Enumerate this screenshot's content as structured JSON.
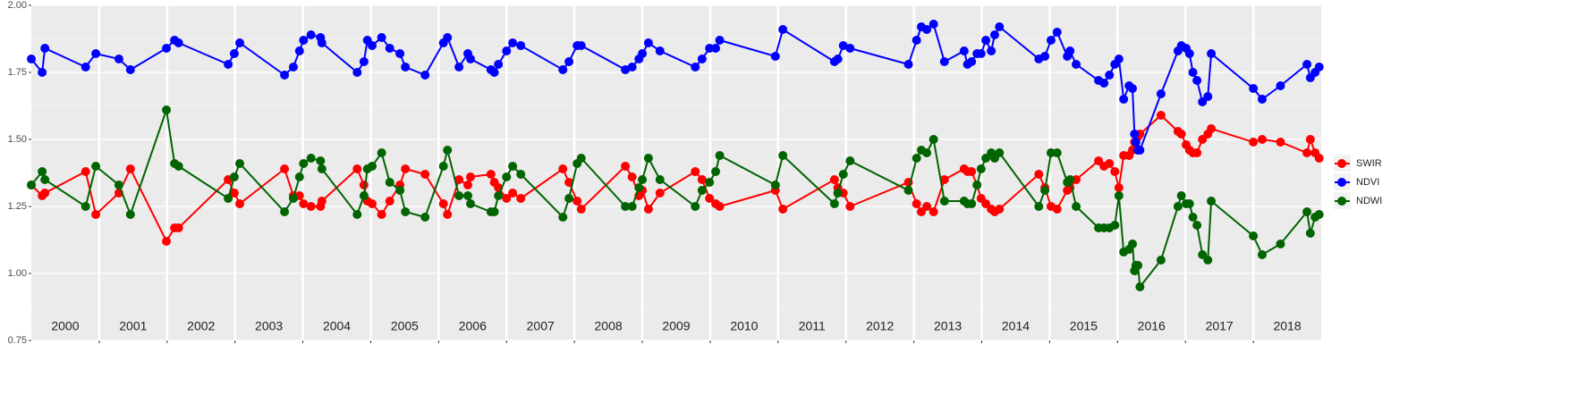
{
  "chart_data": {
    "type": "line",
    "x": [
      2000.0,
      2000.16,
      2000.2,
      2000.8,
      2000.95,
      2001.29,
      2001.46,
      2001.99,
      2002.11,
      2002.17,
      2002.9,
      2002.99,
      2003.07,
      2003.73,
      2003.86,
      2003.95,
      2004.01,
      2004.12,
      2004.26,
      2004.28,
      2004.8,
      2004.9,
      2004.95,
      2005.02,
      2005.16,
      2005.28,
      2005.43,
      2005.51,
      2005.8,
      2006.07,
      2006.13,
      2006.3,
      2006.43,
      2006.47,
      2006.77,
      2006.82,
      2006.88,
      2007.0,
      2007.09,
      2007.21,
      2007.83,
      2007.92,
      2008.04,
      2008.1,
      2008.75,
      2008.85,
      2008.95,
      2009.0,
      2009.09,
      2009.26,
      2009.78,
      2009.88,
      2009.99,
      2010.08,
      2010.14,
      2010.96,
      2011.07,
      2011.83,
      2011.88,
      2011.96,
      2012.06,
      2012.92,
      2013.04,
      2013.11,
      2013.19,
      2013.29,
      2013.45,
      2013.74,
      2013.79,
      2013.85,
      2013.93,
      2013.99,
      2014.06,
      2014.14,
      2014.19,
      2014.26,
      2014.84,
      2014.93,
      2015.02,
      2015.11,
      2015.26,
      2015.3,
      2015.39,
      2015.72,
      2015.8,
      2015.88,
      2015.96,
      2016.02,
      2016.09,
      2016.17,
      2016.22,
      2016.25,
      2016.27,
      2016.3,
      2016.33,
      2016.64,
      2016.89,
      2016.94,
      2017.01,
      2017.06,
      2017.11,
      2017.17,
      2017.25,
      2017.33,
      2017.38,
      2018.0,
      2018.13,
      2018.4,
      2018.79,
      2018.84,
      2018.91,
      2018.97
    ],
    "series": [
      {
        "name": "SWIR",
        "color": "#ff0000",
        "values": [
          1.33,
          1.29,
          1.3,
          1.38,
          1.22,
          1.3,
          1.39,
          1.12,
          1.17,
          1.17,
          1.35,
          1.3,
          1.26,
          1.39,
          1.29,
          1.29,
          1.26,
          1.25,
          1.25,
          1.27,
          1.39,
          1.33,
          1.27,
          1.26,
          1.22,
          1.27,
          1.33,
          1.39,
          1.37,
          1.26,
          1.22,
          1.35,
          1.33,
          1.36,
          1.37,
          1.34,
          1.32,
          1.28,
          1.3,
          1.28,
          1.39,
          1.34,
          1.27,
          1.24,
          1.4,
          1.36,
          1.29,
          1.31,
          1.24,
          1.3,
          1.38,
          1.35,
          1.28,
          1.26,
          1.25,
          1.31,
          1.24,
          1.35,
          1.32,
          1.3,
          1.25,
          1.34,
          1.26,
          1.23,
          1.25,
          1.23,
          1.35,
          1.39,
          1.38,
          1.38,
          1.33,
          1.28,
          1.26,
          1.24,
          1.23,
          1.24,
          1.37,
          1.32,
          1.25,
          1.24,
          1.31,
          1.32,
          1.35,
          1.42,
          1.4,
          1.41,
          1.38,
          1.32,
          1.44,
          1.44,
          1.46,
          1.49,
          1.47,
          1.51,
          1.52,
          1.59,
          1.53,
          1.52,
          1.48,
          1.46,
          1.45,
          1.45,
          1.5,
          1.52,
          1.54,
          1.49,
          1.5,
          1.49,
          1.45,
          1.5,
          1.45,
          1.43
        ]
      },
      {
        "name": "NDVI",
        "color": "#0000ff",
        "values": [
          1.8,
          1.75,
          1.84,
          1.77,
          1.82,
          1.8,
          1.76,
          1.84,
          1.87,
          1.86,
          1.78,
          1.82,
          1.86,
          1.74,
          1.77,
          1.83,
          1.87,
          1.89,
          1.88,
          1.86,
          1.75,
          1.79,
          1.87,
          1.85,
          1.88,
          1.84,
          1.82,
          1.77,
          1.74,
          1.86,
          1.88,
          1.77,
          1.82,
          1.8,
          1.76,
          1.75,
          1.78,
          1.83,
          1.86,
          1.85,
          1.76,
          1.79,
          1.85,
          1.85,
          1.76,
          1.77,
          1.8,
          1.82,
          1.86,
          1.83,
          1.77,
          1.8,
          1.84,
          1.84,
          1.87,
          1.81,
          1.91,
          1.79,
          1.8,
          1.85,
          1.84,
          1.78,
          1.87,
          1.92,
          1.91,
          1.93,
          1.79,
          1.83,
          1.78,
          1.79,
          1.82,
          1.82,
          1.87,
          1.83,
          1.89,
          1.92,
          1.8,
          1.81,
          1.87,
          1.9,
          1.81,
          1.83,
          1.78,
          1.72,
          1.71,
          1.74,
          1.78,
          1.8,
          1.65,
          1.7,
          1.69,
          1.52,
          1.49,
          1.46,
          1.46,
          1.67,
          1.83,
          1.85,
          1.84,
          1.82,
          1.75,
          1.72,
          1.64,
          1.66,
          1.82,
          1.69,
          1.65,
          1.7,
          1.78,
          1.73,
          1.75,
          1.77
        ]
      },
      {
        "name": "NDWI",
        "color": "#006400",
        "values": [
          1.33,
          1.38,
          1.35,
          1.25,
          1.4,
          1.33,
          1.22,
          1.61,
          1.41,
          1.4,
          1.28,
          1.36,
          1.41,
          1.23,
          1.28,
          1.36,
          1.41,
          1.43,
          1.42,
          1.39,
          1.22,
          1.29,
          1.39,
          1.4,
          1.45,
          1.34,
          1.31,
          1.23,
          1.21,
          1.4,
          1.46,
          1.29,
          1.29,
          1.26,
          1.23,
          1.23,
          1.29,
          1.36,
          1.4,
          1.37,
          1.21,
          1.28,
          1.41,
          1.43,
          1.25,
          1.25,
          1.32,
          1.35,
          1.43,
          1.35,
          1.25,
          1.31,
          1.34,
          1.38,
          1.44,
          1.33,
          1.44,
          1.26,
          1.3,
          1.37,
          1.42,
          1.31,
          1.43,
          1.46,
          1.45,
          1.5,
          1.27,
          1.27,
          1.26,
          1.26,
          1.33,
          1.39,
          1.43,
          1.45,
          1.43,
          1.45,
          1.25,
          1.31,
          1.45,
          1.45,
          1.34,
          1.35,
          1.25,
          1.17,
          1.17,
          1.17,
          1.18,
          1.29,
          1.08,
          1.09,
          1.11,
          1.01,
          1.03,
          1.03,
          0.95,
          1.05,
          1.25,
          1.29,
          1.26,
          1.26,
          1.21,
          1.18,
          1.07,
          1.05,
          1.27,
          1.14,
          1.07,
          1.11,
          1.23,
          1.15,
          1.21,
          1.22
        ]
      }
    ],
    "xlim": [
      2000,
      2019
    ],
    "xticks": [
      2001,
      2002,
      2003,
      2004,
      2005,
      2006,
      2007,
      2008,
      2009,
      2010,
      2011,
      2012,
      2013,
      2014,
      2015,
      2016,
      2017,
      2018
    ],
    "ylim": [
      0.75,
      2.0
    ],
    "yticks": [
      0.75,
      {
        "value": 1.0,
        "label": "1.00"
      },
      1.25,
      {
        "value": 1.5,
        "label": "1.50"
      },
      1.75,
      {
        "value": 2.0,
        "label": "2.00"
      }
    ],
    "year_labels": [
      "2000",
      "2001",
      "2002",
      "2003",
      "2004",
      "2005",
      "2006",
      "2007",
      "2008",
      "2009",
      "2010",
      "2011",
      "2012",
      "2013",
      "2014",
      "2015",
      "2016",
      "2017",
      "2018"
    ],
    "grid": true,
    "legend": "right"
  }
}
